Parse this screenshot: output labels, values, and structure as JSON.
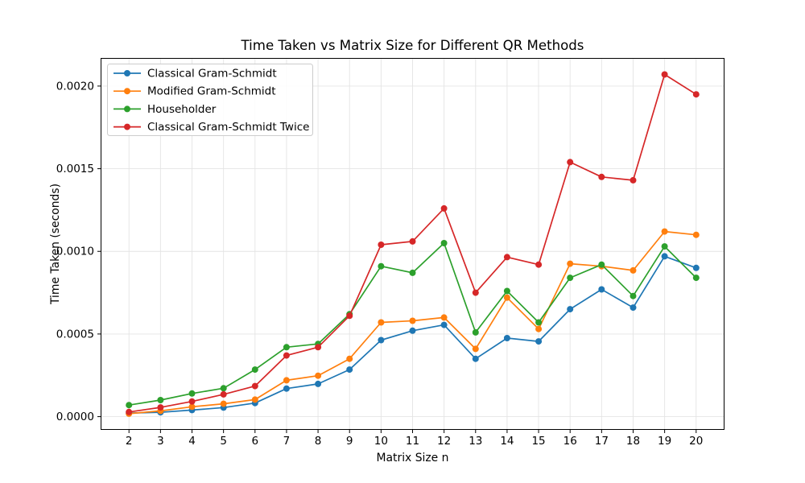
{
  "chart_data": {
    "type": "line",
    "title": "Time Taken vs Matrix Size for Different QR Methods",
    "xlabel": "Matrix Size n",
    "ylabel": "Time Taken (seconds)",
    "grid": true,
    "legend_position": "upper left",
    "background_color": "#ffffff",
    "grid_color": "#e4e4e4",
    "xlim": [
      1.1,
      20.9
    ],
    "ylim": [
      -8e-05,
      0.00217
    ],
    "x_ticks": [
      2,
      3,
      4,
      5,
      6,
      7,
      8,
      9,
      10,
      11,
      12,
      13,
      14,
      15,
      16,
      17,
      18,
      19,
      20
    ],
    "y_ticks": [
      0.0,
      0.0005,
      0.001,
      0.0015,
      0.002
    ],
    "y_tick_labels": [
      "0.0000",
      "0.0005",
      "0.0010",
      "0.0015",
      "0.0020"
    ],
    "x": [
      2,
      3,
      4,
      5,
      6,
      7,
      8,
      9,
      10,
      11,
      12,
      13,
      14,
      15,
      16,
      17,
      18,
      19,
      20
    ],
    "series": [
      {
        "name": "Classical Gram-Schmidt",
        "color": "#1f77b4",
        "values": [
          2.2e-05,
          2.6e-05,
          4e-05,
          5.5e-05,
          8.2e-05,
          0.00017,
          0.000198,
          0.000285,
          0.000463,
          0.00052,
          0.000555,
          0.00035,
          0.000475,
          0.000455,
          0.00065,
          0.00077,
          0.00066,
          0.00097,
          0.0009
        ]
      },
      {
        "name": "Modified Gram-Schmidt",
        "color": "#ff7f0e",
        "values": [
          1.8e-05,
          3.5e-05,
          6e-05,
          7.8e-05,
          0.000103,
          0.00022,
          0.000248,
          0.00035,
          0.00057,
          0.00058,
          0.0006,
          0.00041,
          0.00072,
          0.00053,
          0.000925,
          0.00091,
          0.000885,
          0.00112,
          0.0011
        ]
      },
      {
        "name": "Householder",
        "color": "#2ca02c",
        "values": [
          7e-05,
          0.0001,
          0.00014,
          0.000172,
          0.000285,
          0.00042,
          0.00044,
          0.00062,
          0.00091,
          0.00087,
          0.00105,
          0.00051,
          0.00076,
          0.00057,
          0.00084,
          0.00092,
          0.00073,
          0.00103,
          0.00084
        ]
      },
      {
        "name": "Classical Gram-Schmidt Twice",
        "color": "#d62728",
        "values": [
          2.8e-05,
          5.6e-05,
          9.2e-05,
          0.000135,
          0.000185,
          0.00037,
          0.00042,
          0.00061,
          0.00104,
          0.00106,
          0.00126,
          0.00075,
          0.000965,
          0.00092,
          0.00154,
          0.00145,
          0.00143,
          0.00207,
          0.00195
        ]
      }
    ]
  }
}
